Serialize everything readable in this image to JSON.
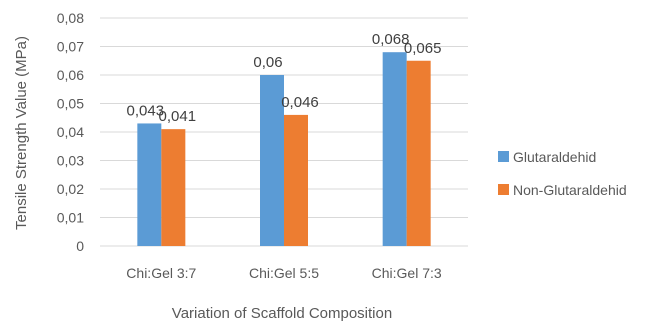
{
  "chart_data": {
    "type": "bar",
    "title": "",
    "xlabel": "Variation of Scaffold Composition",
    "ylabel": "Tensile Strength Value (MPa)",
    "categories": [
      "Chi:Gel 3:7",
      "Chi:Gel 5:5",
      "Chi:Gel 7:3"
    ],
    "series": [
      {
        "name": "Glutaraldehid",
        "color": "#5B9BD5",
        "values": [
          0.043,
          0.06,
          0.068
        ],
        "value_labels": [
          "0,043",
          "0,06",
          "0,068"
        ]
      },
      {
        "name": "Non-Glutaraldehid",
        "color": "#ED7D31",
        "values": [
          0.041,
          0.046,
          0.065
        ],
        "value_labels": [
          "0,041",
          "0,046",
          "0,065"
        ]
      }
    ],
    "ylim": [
      0,
      0.08
    ],
    "yticks": [
      0,
      0.01,
      0.02,
      0.03,
      0.04,
      0.05,
      0.06,
      0.07,
      0.08
    ],
    "ytick_labels": [
      "0",
      "0,01",
      "0,02",
      "0,03",
      "0,04",
      "0,05",
      "0,06",
      "0,07",
      "0,08"
    ],
    "grid": true,
    "legend_position": "right",
    "colors": {
      "grid": "#D9D9D9",
      "text": "#595959",
      "label_text": "#404040"
    }
  }
}
